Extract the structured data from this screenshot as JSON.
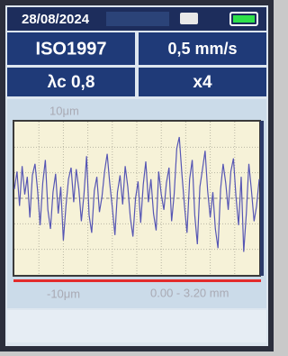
{
  "header": {
    "date": "28/08/2024"
  },
  "settings": {
    "standard": "ISO1997",
    "speed": "0,5 mm/s",
    "cutoff": "λc 0,8",
    "magnification": "x4"
  },
  "chart_data": {
    "type": "line",
    "yticks": [
      {
        "value": 10,
        "label": "10μm"
      },
      {
        "value": -10,
        "label": "-10μm"
      }
    ],
    "ylim": [
      -10,
      10
    ],
    "x_range_label": "0.00 - 3.20 mm",
    "color": "#5656b4",
    "values": [
      1.2,
      3.5,
      -1.0,
      4.2,
      0.5,
      2.8,
      -2.5,
      3.0,
      4.5,
      1.0,
      -3.5,
      2.0,
      5.0,
      -1.5,
      -4.0,
      0.8,
      3.2,
      -2.0,
      1.5,
      -5.5,
      -1.0,
      2.5,
      4.0,
      -0.5,
      3.8,
      1.2,
      -3.0,
      0.5,
      5.5,
      -2.2,
      -4.5,
      1.0,
      2.8,
      -1.8,
      0.2,
      3.5,
      5.8,
      2.0,
      -1.2,
      -4.8,
      0.8,
      3.0,
      -0.8,
      4.2,
      1.5,
      -2.5,
      -5.0,
      0.0,
      2.2,
      -3.2,
      1.8,
      4.8,
      -0.5,
      2.5,
      -2.0,
      -4.2,
      3.5,
      0.5,
      -1.5,
      2.0,
      4.0,
      -3.0,
      0.5,
      6.5,
      8.0,
      3.2,
      -1.0,
      -4.5,
      2.5,
      5.0,
      -2.2,
      -6.0,
      1.5,
      3.8,
      6.2,
      1.0,
      -2.5,
      0.8,
      -4.0,
      -6.5,
      1.2,
      4.5,
      2.0,
      -1.5,
      3.5,
      5.2,
      0.2,
      -3.5,
      2.8,
      -7.0,
      -2.0,
      4.5,
      1.0,
      -3.0,
      -1.0,
      2.5
    ]
  }
}
